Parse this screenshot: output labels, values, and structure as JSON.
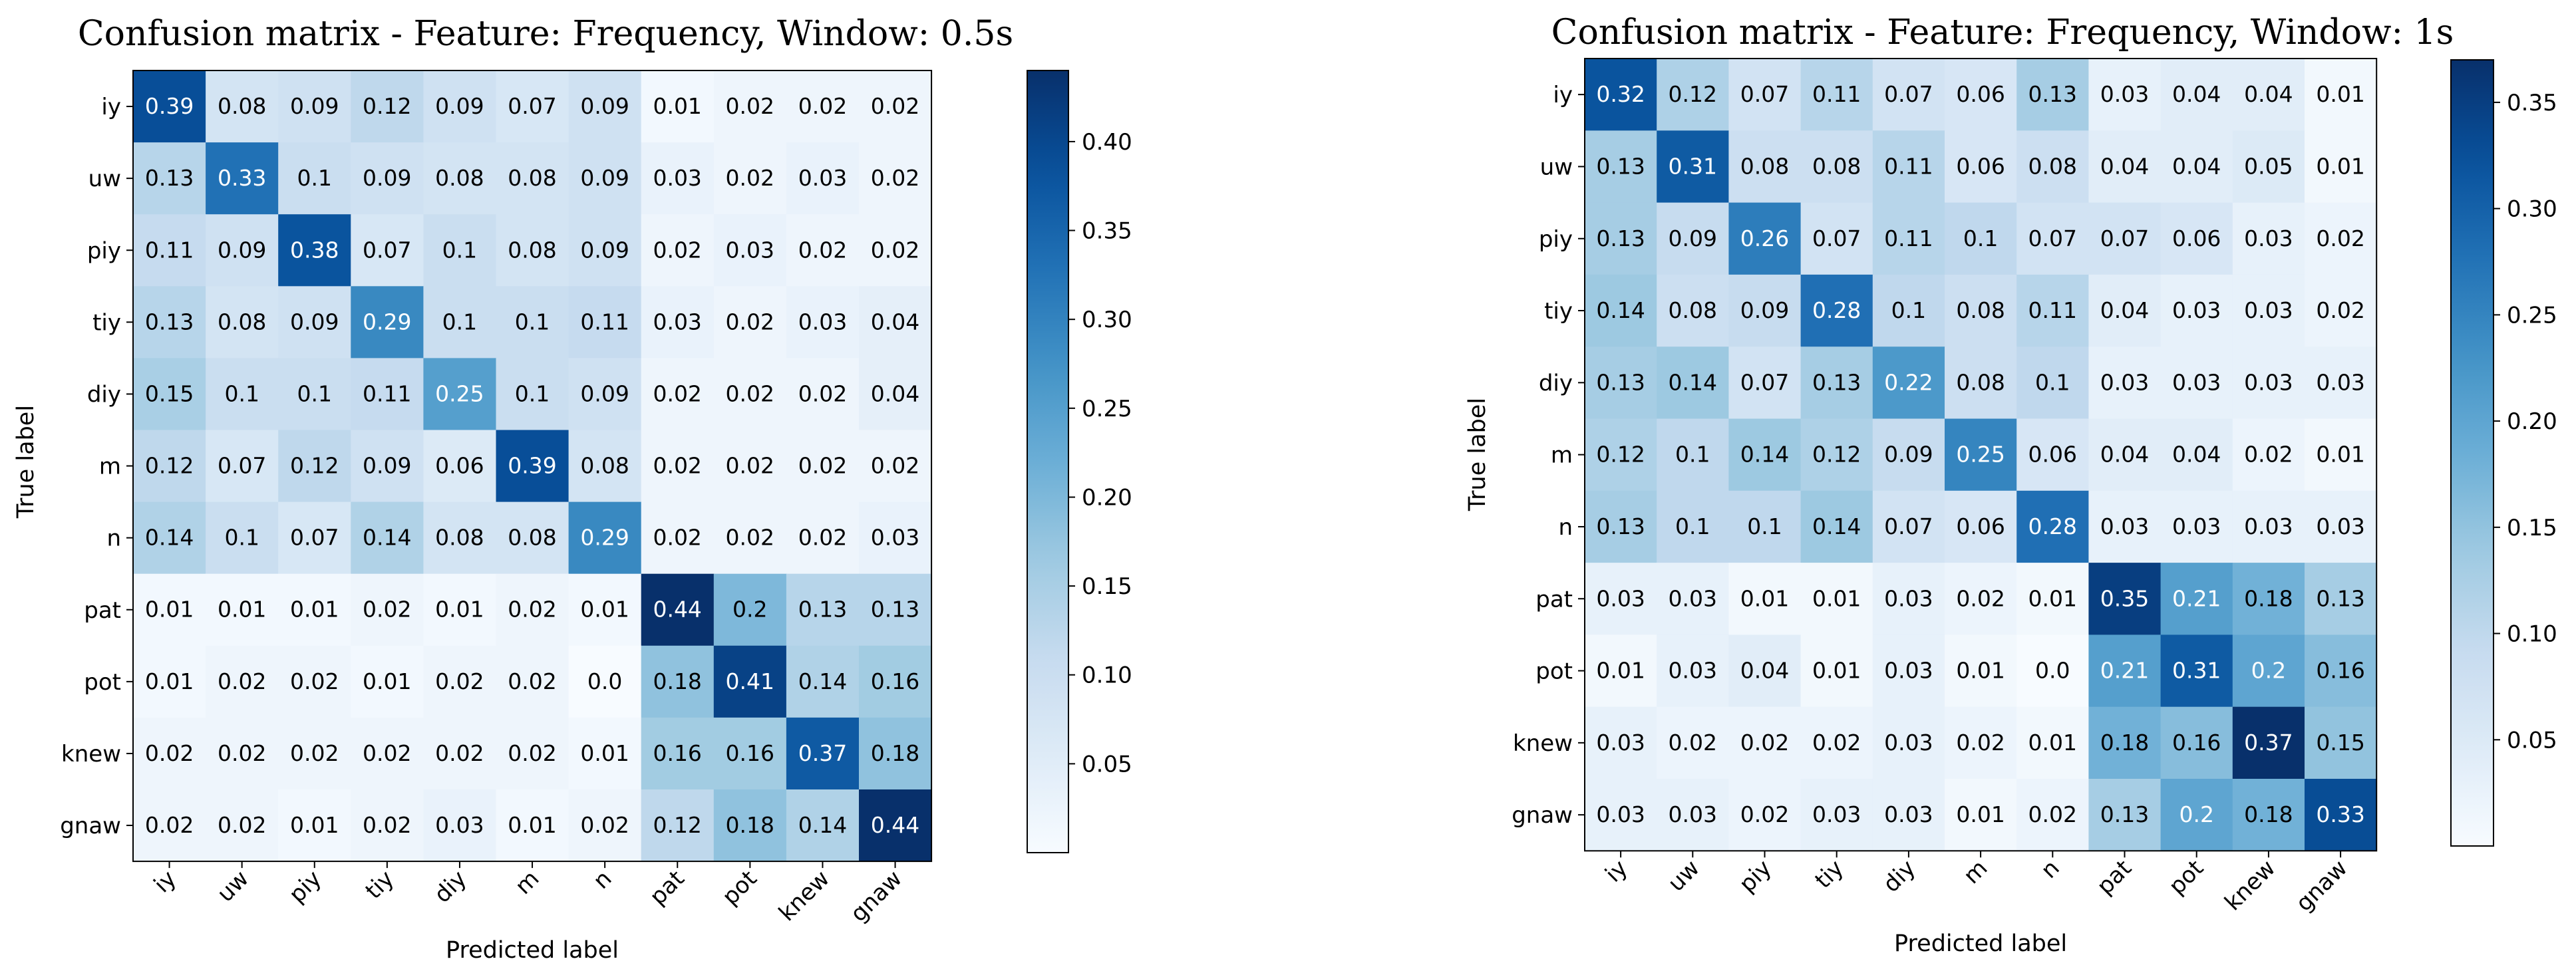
{
  "chart_data": [
    {
      "type": "heatmap",
      "title": "Confusion matrix - Feature: Frequency, Window: 0.5s",
      "xlabel": "Predicted label",
      "ylabel": "True label",
      "x_categories": [
        "iy",
        "uw",
        "piy",
        "tiy",
        "diy",
        "m",
        "n",
        "pat",
        "pot",
        "knew",
        "gnaw"
      ],
      "y_categories": [
        "iy",
        "uw",
        "piy",
        "tiy",
        "diy",
        "m",
        "n",
        "pat",
        "pot",
        "knew",
        "gnaw"
      ],
      "values": [
        [
          "0.39",
          "0.08",
          "0.09",
          "0.12",
          "0.09",
          "0.07",
          "0.09",
          "0.01",
          "0.02",
          "0.02",
          "0.02"
        ],
        [
          "0.13",
          "0.33",
          "0.1",
          "0.09",
          "0.08",
          "0.08",
          "0.09",
          "0.03",
          "0.02",
          "0.03",
          "0.02"
        ],
        [
          "0.11",
          "0.09",
          "0.38",
          "0.07",
          "0.1",
          "0.08",
          "0.09",
          "0.02",
          "0.03",
          "0.02",
          "0.02"
        ],
        [
          "0.13",
          "0.08",
          "0.09",
          "0.29",
          "0.1",
          "0.1",
          "0.11",
          "0.03",
          "0.02",
          "0.03",
          "0.04"
        ],
        [
          "0.15",
          "0.1",
          "0.1",
          "0.11",
          "0.25",
          "0.1",
          "0.09",
          "0.02",
          "0.02",
          "0.02",
          "0.04"
        ],
        [
          "0.12",
          "0.07",
          "0.12",
          "0.09",
          "0.06",
          "0.39",
          "0.08",
          "0.02",
          "0.02",
          "0.02",
          "0.02"
        ],
        [
          "0.14",
          "0.1",
          "0.07",
          "0.14",
          "0.08",
          "0.08",
          "0.29",
          "0.02",
          "0.02",
          "0.02",
          "0.03"
        ],
        [
          "0.01",
          "0.01",
          "0.01",
          "0.02",
          "0.01",
          "0.02",
          "0.01",
          "0.44",
          "0.2",
          "0.13",
          "0.13"
        ],
        [
          "0.01",
          "0.02",
          "0.02",
          "0.01",
          "0.02",
          "0.02",
          "0.0",
          "0.18",
          "0.41",
          "0.14",
          "0.16"
        ],
        [
          "0.02",
          "0.02",
          "0.02",
          "0.02",
          "0.02",
          "0.02",
          "0.01",
          "0.16",
          "0.16",
          "0.37",
          "0.18"
        ],
        [
          "0.02",
          "0.02",
          "0.01",
          "0.02",
          "0.03",
          "0.01",
          "0.02",
          "0.12",
          "0.18",
          "0.14",
          "0.44"
        ]
      ],
      "colorbar": {
        "range": [
          0.0,
          0.44
        ],
        "ticks": [
          "0.05",
          "0.10",
          "0.15",
          "0.20",
          "0.25",
          "0.30",
          "0.35",
          "0.40"
        ]
      },
      "colormap": "Blues"
    },
    {
      "type": "heatmap",
      "title": "Confusion matrix - Feature: Frequency, Window: 1s",
      "xlabel": "Predicted label",
      "ylabel": "True label",
      "x_categories": [
        "iy",
        "uw",
        "piy",
        "tiy",
        "diy",
        "m",
        "n",
        "pat",
        "pot",
        "knew",
        "gnaw"
      ],
      "y_categories": [
        "iy",
        "uw",
        "piy",
        "tiy",
        "diy",
        "m",
        "n",
        "pat",
        "pot",
        "knew",
        "gnaw"
      ],
      "values": [
        [
          "0.32",
          "0.12",
          "0.07",
          "0.11",
          "0.07",
          "0.06",
          "0.13",
          "0.03",
          "0.04",
          "0.04",
          "0.01"
        ],
        [
          "0.13",
          "0.31",
          "0.08",
          "0.08",
          "0.11",
          "0.06",
          "0.08",
          "0.04",
          "0.04",
          "0.05",
          "0.01"
        ],
        [
          "0.13",
          "0.09",
          "0.26",
          "0.07",
          "0.11",
          "0.1",
          "0.07",
          "0.07",
          "0.06",
          "0.03",
          "0.02"
        ],
        [
          "0.14",
          "0.08",
          "0.09",
          "0.28",
          "0.1",
          "0.08",
          "0.11",
          "0.04",
          "0.03",
          "0.03",
          "0.02"
        ],
        [
          "0.13",
          "0.14",
          "0.07",
          "0.13",
          "0.22",
          "0.08",
          "0.1",
          "0.03",
          "0.03",
          "0.03",
          "0.03"
        ],
        [
          "0.12",
          "0.1",
          "0.14",
          "0.12",
          "0.09",
          "0.25",
          "0.06",
          "0.04",
          "0.04",
          "0.02",
          "0.01"
        ],
        [
          "0.13",
          "0.1",
          "0.1",
          "0.14",
          "0.07",
          "0.06",
          "0.28",
          "0.03",
          "0.03",
          "0.03",
          "0.03"
        ],
        [
          "0.03",
          "0.03",
          "0.01",
          "0.01",
          "0.03",
          "0.02",
          "0.01",
          "0.35",
          "0.21",
          "0.18",
          "0.13"
        ],
        [
          "0.01",
          "0.03",
          "0.04",
          "0.01",
          "0.03",
          "0.01",
          "0.0",
          "0.21",
          "0.31",
          "0.2",
          "0.16"
        ],
        [
          "0.03",
          "0.02",
          "0.02",
          "0.02",
          "0.03",
          "0.02",
          "0.01",
          "0.18",
          "0.16",
          "0.37",
          "0.15"
        ],
        [
          "0.03",
          "0.03",
          "0.02",
          "0.03",
          "0.03",
          "0.01",
          "0.02",
          "0.13",
          "0.2",
          "0.18",
          "0.33"
        ]
      ],
      "colorbar": {
        "range": [
          0.0,
          0.37
        ],
        "ticks": [
          "0.05",
          "0.10",
          "0.15",
          "0.20",
          "0.25",
          "0.30",
          "0.35"
        ]
      },
      "colormap": "Blues"
    }
  ]
}
